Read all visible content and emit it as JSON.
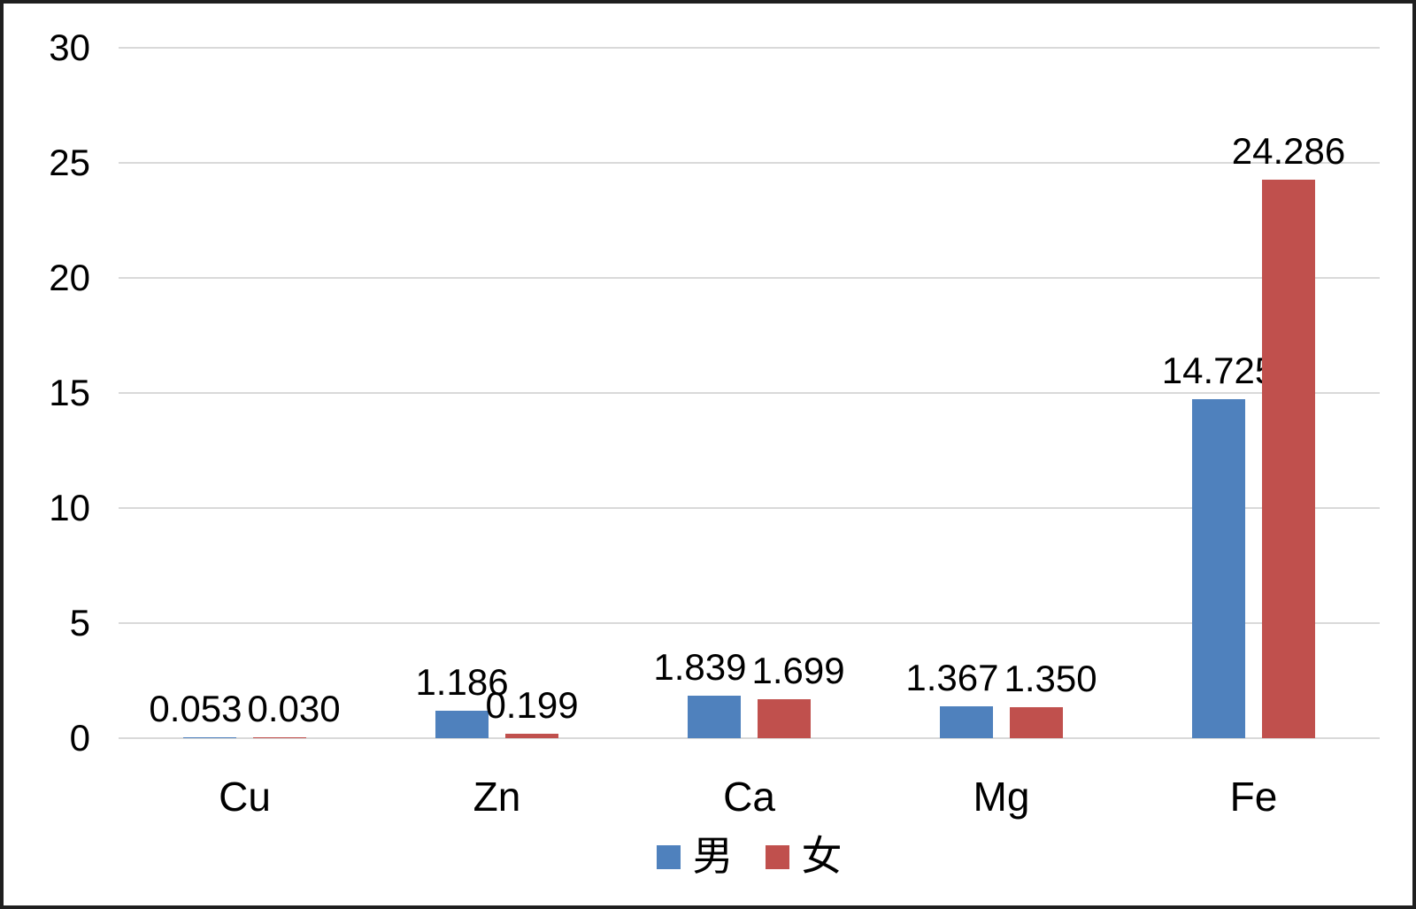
{
  "chart_data": {
    "type": "bar",
    "title": "",
    "xlabel": "",
    "ylabel": "",
    "categories": [
      "Cu",
      "Zn",
      "Ca",
      "Mg",
      "Fe"
    ],
    "series": [
      {
        "name": "男",
        "color": "#4F81BD",
        "values": [
          0.053,
          1.186,
          1.839,
          1.367,
          14.725
        ],
        "labels": [
          "0.053",
          "1.186",
          "1.839",
          "1.367",
          "14.725"
        ]
      },
      {
        "name": "女",
        "color": "#C0504D",
        "values": [
          0.03,
          0.199,
          1.699,
          1.35,
          24.286
        ],
        "labels": [
          "0.030",
          "0.199",
          "1.699",
          "1.350",
          "24.286"
        ]
      }
    ],
    "ylim": [
      0,
      30
    ],
    "yticks": [
      "0",
      "5",
      "10",
      "15",
      "20",
      "25",
      "30"
    ],
    "grid": true,
    "legend_position": "bottom",
    "colors": {
      "gridline": "#d9d9d9",
      "text": "#000000",
      "frame": "#1f1f1f",
      "background": "#ffffff"
    }
  }
}
